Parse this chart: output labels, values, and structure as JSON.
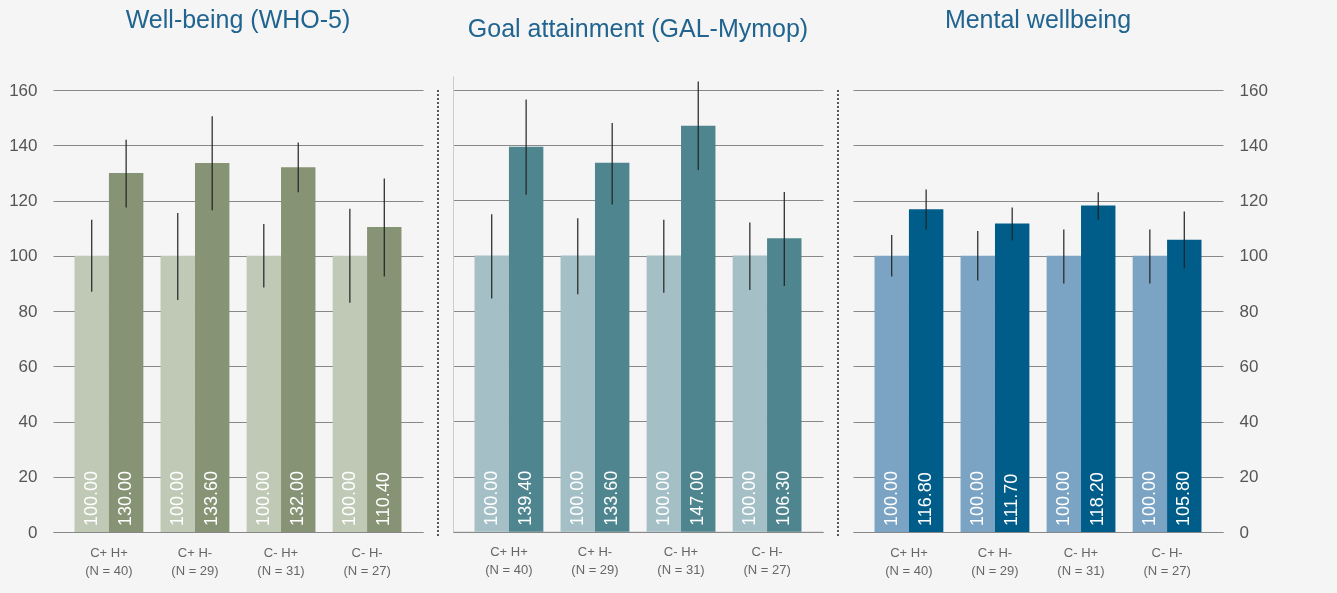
{
  "chart_data": [
    {
      "type": "bar",
      "title": "Well-being (WHO-5)",
      "categories": [
        "C+ H+\n(N = 40)",
        "C+ H-\n(N = 29)",
        "C- H+\n(N = 31)",
        "C- H-\n(N = 27)"
      ],
      "ylim": [
        0,
        160
      ],
      "yticks": [
        0,
        20,
        40,
        60,
        80,
        100,
        120,
        140,
        160
      ],
      "grid": "y",
      "series": [
        {
          "color": "#c0c8b6",
          "values": [
            100,
            100,
            100,
            100
          ],
          "value_labels": [
            "100.00",
            "100.00",
            "100.00",
            "100.00"
          ],
          "errors": [
            [
              87,
              113
            ],
            [
              84,
              115.5
            ],
            [
              88.5,
              111.5
            ],
            [
              83,
              117
            ]
          ]
        },
        {
          "color": "#869375",
          "values": [
            130,
            133.6,
            132,
            110.4
          ],
          "value_labels": [
            "130.00",
            "133.60",
            "132.00",
            "110.40"
          ],
          "errors": [
            [
              117.5,
              142
            ],
            [
              116.5,
              150.5
            ],
            [
              123,
              141
            ],
            [
              92.5,
              128
            ]
          ]
        }
      ]
    },
    {
      "type": "bar",
      "title": "Goal attainment (GAL-Mymop)",
      "categories": [
        "C+ H+\n(N = 40)",
        "C+ H-\n(N = 29)",
        "C- H+\n(N = 31)",
        "C- H-\n(N = 27)"
      ],
      "ylim": [
        0,
        165
      ],
      "yticks": [
        0,
        20,
        40,
        60,
        80,
        100,
        120,
        140,
        160
      ],
      "grid": "y",
      "tick_labels": "x",
      "series": [
        {
          "color": "#a4c0c6",
          "values": [
            100,
            100,
            100,
            100
          ],
          "value_labels": [
            "100.00",
            "100.00",
            "100.00",
            "100.00"
          ],
          "errors": [
            [
              84.5,
              115
            ],
            [
              86,
              113.5
            ],
            [
              86.5,
              113
            ],
            [
              87.5,
              112
            ]
          ]
        },
        {
          "color": "#4e858e",
          "values": [
            139.4,
            133.6,
            147,
            106.3
          ],
          "value_labels": [
            "139.40",
            "133.60",
            "147.00",
            "106.30"
          ],
          "errors": [
            [
              122,
              156.5
            ],
            [
              118.5,
              148
            ],
            [
              131,
              163
            ],
            [
              89,
              123
            ]
          ]
        }
      ]
    },
    {
      "type": "bar",
      "title": "Mental wellbeing",
      "categories": [
        "C+ H+\n(N = 40)",
        "C+ H-\n(N = 29)",
        "C- H+\n(N = 31)",
        "C- H-\n(N = 27)"
      ],
      "ylim": [
        0,
        160
      ],
      "yticks": [
        0,
        20,
        40,
        60,
        80,
        100,
        120,
        140,
        160
      ],
      "grid": "y",
      "series": [
        {
          "color": "#7ba4c4",
          "values": [
            100,
            100,
            100,
            100
          ],
          "value_labels": [
            "100.00",
            "100.00",
            "100.00",
            "100.00"
          ],
          "errors": [
            [
              92.5,
              107.5
            ],
            [
              91,
              109
            ],
            [
              90,
              109.5
            ],
            [
              90,
              109.5
            ]
          ]
        },
        {
          "color": "#005d8a",
          "values": [
            116.8,
            111.7,
            118.2,
            105.8
          ],
          "value_labels": [
            "116.80",
            "111.70",
            "118.20",
            "105.80"
          ],
          "errors": [
            [
              109.5,
              124
            ],
            [
              105.5,
              117.5
            ],
            [
              113,
              123
            ],
            [
              95.5,
              116
            ]
          ]
        }
      ]
    }
  ]
}
